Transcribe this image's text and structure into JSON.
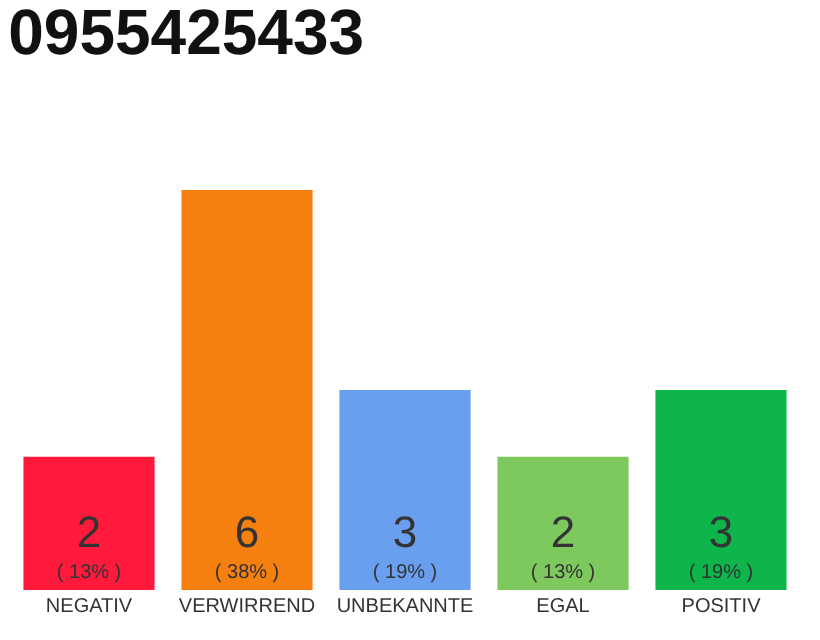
{
  "chart_data": {
    "type": "bar",
    "title": "0955425433",
    "categories": [
      "NEGATIV",
      "VERWIRREND",
      "UNBEKANNTE",
      "EGAL",
      "POSITIV"
    ],
    "values": [
      2,
      6,
      3,
      2,
      3
    ],
    "colors": [
      "#ff1a3c",
      "#f5800f",
      "#6a9ff0",
      "#7dc95e",
      "#0db54a"
    ],
    "value_labels": [
      "2\n( 13% )",
      "6\n( 38% )",
      "3\n( 19% )",
      "2\n( 13% )",
      "3\n( 19% )"
    ],
    "orientation": "vertical"
  }
}
